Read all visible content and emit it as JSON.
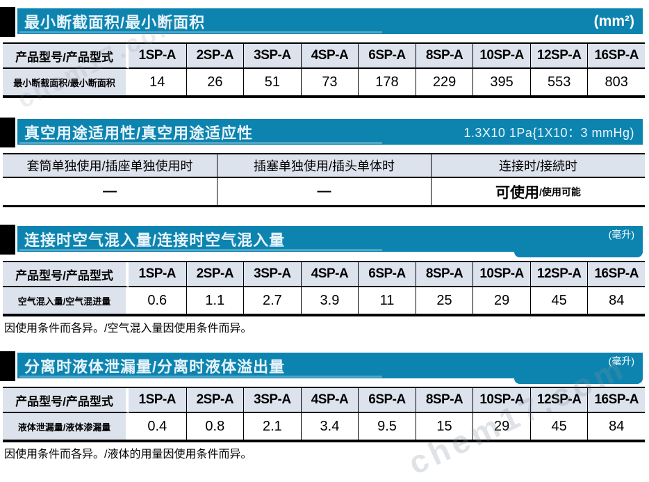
{
  "page": {
    "watermark_text": "chem17.com",
    "accent_color": "#0d84b0",
    "header_cell_color": "#dde3ed"
  },
  "product_columns": [
    "1SP-A",
    "2SP-A",
    "3SP-A",
    "4SP-A",
    "6SP-A",
    "8SP-A",
    "10SP-A",
    "12SP-A",
    "16SP-A"
  ],
  "sections": [
    {
      "title": "最小断截面积/最小断面积",
      "unit": "(mm²)",
      "row_header": "产品型号/产品型式",
      "row_label": "最小断截面积/最小断面积",
      "values": [
        "14",
        "26",
        "51",
        "73",
        "178",
        "229",
        "395",
        "553",
        "803"
      ]
    },
    {
      "title": "真空用途适用性/真空用途适应性",
      "unit": "1.3X10 1Pa{1X10：3 mmHg)",
      "columns": [
        "套筒单独使用/插座单独使用时",
        "插塞单独使用/插头单体时",
        "连接时/接続时"
      ],
      "dash": "—",
      "usable_main": "可使用",
      "usable_sub": "/使用可能"
    },
    {
      "title": "连接时空气混入量/连接时空气混入量",
      "unit": "(毫升)",
      "row_header": "产品型号/产品型式",
      "row_label": "空气混入量/空气混进量",
      "values": [
        "0.6",
        "1.1",
        "2.7",
        "3.9",
        "11",
        "25",
        "29",
        "45",
        "84"
      ],
      "note": "因使用条件而各异。/空气混入量因使用条件而异。"
    },
    {
      "title": "分离时液体泄漏量/分离时液体溢出量",
      "unit": "(毫升)",
      "row_header": "产品型号/产品型式",
      "row_label": "液体泄漏量/液体渗漏量",
      "values": [
        "0.4",
        "0.8",
        "2.1",
        "3.4",
        "9.5",
        "15",
        "29",
        "45",
        "84"
      ],
      "note": "因使用条件而各异。/液体的用量因使用条件而异。"
    }
  ]
}
